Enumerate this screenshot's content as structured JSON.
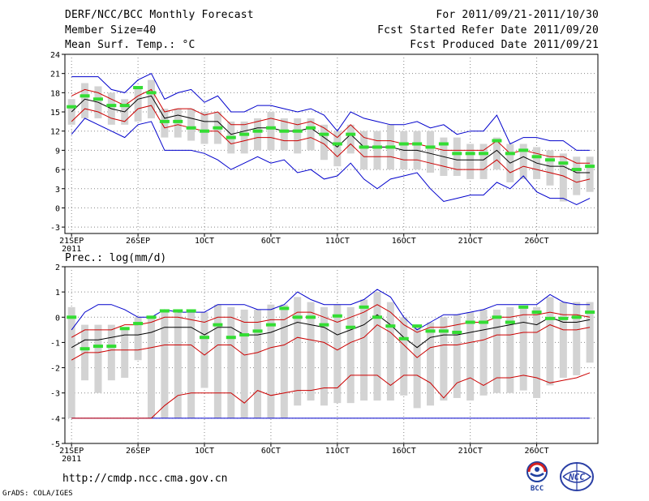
{
  "header": {
    "title": "DERF/NCC/BCC Monthly Forecast",
    "member_size": "Member Size=40",
    "variable": "Mean Surf. Temp.: °C",
    "period": "For 2011/09/21-2011/10/30",
    "fcst_started": "Fcst Started Refer Date 2011/09/20",
    "fcst_produced": "Fcst Produced Date 2011/09/21"
  },
  "footer": {
    "url": "http://cmdp.ncc.cma.gov.cn",
    "credit": "GrADS: COLA/IGES"
  },
  "logos": {
    "left": "BCC",
    "right": "NCC"
  },
  "colors": {
    "mean": "#000000",
    "spread": "#cc0000",
    "extreme": "#0000cc",
    "obs": "#33dd33",
    "box": "#d3d3d3"
  },
  "chart_data": [
    {
      "type": "line",
      "title": "Mean Surf. Temp.: °C",
      "ylim": [
        -4,
        24
      ],
      "yticks": [
        -3,
        0,
        3,
        6,
        9,
        12,
        15,
        18,
        21,
        24
      ],
      "xlim": [
        0,
        40
      ],
      "xticks": [
        {
          "day": 0,
          "label": "21SEP",
          "sub": "2011"
        },
        {
          "day": 5,
          "label": "26SEP"
        },
        {
          "day": 10,
          "label": "1OCT"
        },
        {
          "day": 15,
          "label": "6OCT"
        },
        {
          "day": 20,
          "label": "11OCT"
        },
        {
          "day": 25,
          "label": "16OCT"
        },
        {
          "day": 30,
          "label": "21OCT"
        },
        {
          "day": 35,
          "label": "26OCT"
        }
      ],
      "series": [
        {
          "name": "ensemble-max",
          "values": [
            20.5,
            20.5,
            20.5,
            18.5,
            18,
            20,
            21,
            17,
            18,
            18.5,
            16.5,
            17.5,
            15,
            15,
            16,
            16,
            15.5,
            15,
            15.5,
            14.5,
            12,
            15,
            14,
            13.5,
            13,
            13,
            13.5,
            12.5,
            13,
            11.5,
            12,
            12,
            14.5,
            10,
            11,
            11,
            10.5,
            10.5,
            9,
            9
          ]
        },
        {
          "name": "ensemble-upper",
          "values": [
            17.5,
            18.5,
            18,
            17,
            16,
            17.5,
            18.5,
            15,
            15.5,
            15.5,
            14.5,
            15,
            13,
            13,
            13.5,
            14,
            13.5,
            13,
            13.5,
            12.5,
            11,
            13,
            11,
            10.5,
            10.5,
            10,
            10,
            9.5,
            9,
            9,
            9,
            9,
            10.5,
            8.5,
            9,
            8.5,
            8,
            8,
            7,
            7
          ]
        },
        {
          "name": "ensemble-mean",
          "values": [
            15,
            17,
            16.5,
            15.5,
            15,
            17,
            17.5,
            14,
            14.5,
            14,
            13.5,
            13.5,
            11.5,
            12,
            12.5,
            12.5,
            12,
            12,
            12.5,
            11,
            9.5,
            11.5,
            9.5,
            9.5,
            9.5,
            9,
            9,
            8.5,
            8,
            7.5,
            7.5,
            7.5,
            9,
            7,
            8,
            7,
            6.5,
            6.5,
            5.5,
            5.5
          ]
        },
        {
          "name": "ensemble-lower",
          "values": [
            13.5,
            15.5,
            15,
            14,
            13.5,
            15.5,
            16,
            12.5,
            13,
            12.5,
            12,
            12,
            10,
            10.5,
            11,
            11,
            10.5,
            10.5,
            11,
            10,
            8,
            10,
            8,
            8,
            8,
            7.5,
            7.5,
            7,
            6.5,
            6,
            6,
            6,
            7.5,
            5.5,
            6.5,
            6,
            5.5,
            5,
            4,
            4.5
          ]
        },
        {
          "name": "ensemble-min",
          "values": [
            11.5,
            14,
            13,
            12,
            11,
            13,
            13.5,
            9,
            9,
            9,
            8.5,
            7.5,
            6,
            7,
            8,
            7,
            7.5,
            5.5,
            6,
            4.5,
            5,
            7,
            4.5,
            3,
            4.5,
            5,
            5.5,
            3,
            1,
            1.5,
            2,
            2,
            4,
            3,
            5,
            2.5,
            1.5,
            1.5,
            0.5,
            1.5
          ]
        },
        {
          "name": "observed",
          "values": [
            15.8,
            17.5,
            17,
            16,
            16,
            18.8,
            18,
            13.5,
            13.5,
            12.5,
            12,
            12.5,
            11,
            11.5,
            12,
            12.5,
            12,
            12,
            12.5,
            11.5,
            10,
            11.5,
            9.5,
            9.5,
            9.5,
            10,
            10,
            9.5,
            10,
            8.5,
            8.5,
            8.5,
            10.5,
            8.5,
            9,
            8,
            7.5,
            7,
            6,
            6.5
          ]
        }
      ],
      "boxes": [
        {
          "q1": 13,
          "q3": 17
        },
        {
          "q1": 14,
          "q3": 19.5
        },
        {
          "q1": 14,
          "q3": 19
        },
        {
          "q1": 13,
          "q3": 18
        },
        {
          "q1": 13,
          "q3": 17
        },
        {
          "q1": 13.5,
          "q3": 19
        },
        {
          "q1": 14,
          "q3": 20
        },
        {
          "q1": 11,
          "q3": 15.5
        },
        {
          "q1": 11,
          "q3": 15.5
        },
        {
          "q1": 10.5,
          "q3": 15.5
        },
        {
          "q1": 10,
          "q3": 15
        },
        {
          "q1": 10,
          "q3": 15
        },
        {
          "q1": 8.5,
          "q3": 13.5
        },
        {
          "q1": 8.5,
          "q3": 13.5
        },
        {
          "q1": 9,
          "q3": 14
        },
        {
          "q1": 9,
          "q3": 15
        },
        {
          "q1": 9,
          "q3": 14
        },
        {
          "q1": 8.5,
          "q3": 14
        },
        {
          "q1": 9,
          "q3": 14
        },
        {
          "q1": 7.5,
          "q3": 13
        },
        {
          "q1": 6.5,
          "q3": 12
        },
        {
          "q1": 8.5,
          "q3": 13
        },
        {
          "q1": 6,
          "q3": 12
        },
        {
          "q1": 6,
          "q3": 12
        },
        {
          "q1": 6,
          "q3": 13
        },
        {
          "q1": 6,
          "q3": 12
        },
        {
          "q1": 6,
          "q3": 12
        },
        {
          "q1": 5.5,
          "q3": 12
        },
        {
          "q1": 5,
          "q3": 11
        },
        {
          "q1": 5,
          "q3": 11
        },
        {
          "q1": 4.5,
          "q3": 10
        },
        {
          "q1": 4.5,
          "q3": 10
        },
        {
          "q1": 6,
          "q3": 11
        },
        {
          "q1": 4,
          "q3": 10
        },
        {
          "q1": 4.5,
          "q3": 10
        },
        {
          "q1": 4.5,
          "q3": 9.5
        },
        {
          "q1": 3.5,
          "q3": 9
        },
        {
          "q1": 1,
          "q3": 8.5
        },
        {
          "q1": 2,
          "q3": 8
        },
        {
          "q1": 2.5,
          "q3": 8
        }
      ]
    },
    {
      "type": "line",
      "title": "Prec.: log(mm/d)",
      "ylim": [
        -5,
        2
      ],
      "yticks": [
        -5,
        -4,
        -3,
        -2,
        -1,
        0,
        1,
        2
      ],
      "xlim": [
        0,
        40
      ],
      "xticks": [
        {
          "day": 0,
          "label": "21SEP",
          "sub": "2011"
        },
        {
          "day": 5,
          "label": "26SEP"
        },
        {
          "day": 10,
          "label": "1OCT"
        },
        {
          "day": 15,
          "label": "6OCT"
        },
        {
          "day": 20,
          "label": "11OCT"
        },
        {
          "day": 25,
          "label": "16OCT"
        },
        {
          "day": 30,
          "label": "21OCT"
        },
        {
          "day": 35,
          "label": "26OCT"
        }
      ],
      "series": [
        {
          "name": "ensemble-max",
          "values": [
            -0.5,
            0.2,
            0.5,
            0.5,
            0.3,
            0,
            0,
            0.3,
            0.2,
            0.2,
            0.2,
            0.5,
            0.5,
            0.5,
            0.3,
            0.3,
            0.5,
            1,
            0.7,
            0.5,
            0.5,
            0.5,
            0.7,
            1.1,
            0.8,
            0,
            -0.5,
            -0.2,
            0.1,
            0.1,
            0.2,
            0.3,
            0.5,
            0.5,
            0.5,
            0.5,
            0.9,
            0.6,
            0.5,
            0.5
          ]
        },
        {
          "name": "ensemble-upper",
          "values": [
            -0.8,
            -0.5,
            -0.5,
            -0.5,
            -0.3,
            -0.3,
            -0.2,
            0,
            0,
            -0.1,
            -0.2,
            0,
            0,
            -0.2,
            -0.2,
            -0.1,
            -0.1,
            0.2,
            0.2,
            0,
            -0.2,
            0,
            0.2,
            0.5,
            0.2,
            -0.3,
            -0.6,
            -0.4,
            -0.4,
            -0.3,
            -0.2,
            -0.2,
            0,
            0,
            0.1,
            0.1,
            0.2,
            0.1,
            0.1,
            0
          ]
        },
        {
          "name": "ensemble-mean",
          "values": [
            -1.2,
            -0.9,
            -0.9,
            -0.8,
            -0.7,
            -0.7,
            -0.6,
            -0.4,
            -0.4,
            -0.4,
            -0.7,
            -0.4,
            -0.4,
            -0.7,
            -0.7,
            -0.6,
            -0.4,
            -0.2,
            -0.3,
            -0.4,
            -0.7,
            -0.5,
            -0.3,
            0.1,
            -0.3,
            -0.8,
            -1.2,
            -0.8,
            -0.7,
            -0.7,
            -0.6,
            -0.5,
            -0.4,
            -0.3,
            -0.2,
            -0.3,
            0,
            -0.2,
            -0.2,
            -0.1
          ]
        },
        {
          "name": "ensemble-lower",
          "values": [
            -1.7,
            -1.4,
            -1.4,
            -1.3,
            -1.3,
            -1.3,
            -1.2,
            -1.1,
            -1.1,
            -1.1,
            -1.5,
            -1.1,
            -1.1,
            -1.5,
            -1.4,
            -1.2,
            -1.1,
            -0.8,
            -0.9,
            -1,
            -1.3,
            -1,
            -0.8,
            -0.3,
            -0.6,
            -1.1,
            -1.6,
            -1.2,
            -1.1,
            -1.1,
            -1,
            -0.9,
            -0.7,
            -0.7,
            -0.6,
            -0.6,
            -0.3,
            -0.5,
            -0.5,
            -0.4
          ]
        },
        {
          "name": "ensemble-min",
          "values": [
            -4,
            -4,
            -4,
            -4,
            -4,
            -4,
            -4,
            -4,
            -4,
            -4,
            -4,
            -4,
            -4,
            -4,
            -4,
            -4,
            -4,
            -4,
            -4,
            -4,
            -4,
            -4,
            -4,
            -4,
            -4,
            -4,
            -4,
            -4,
            -4,
            -4,
            -4,
            -4,
            -4,
            -4,
            -4,
            -4,
            -4,
            -4,
            -4,
            -4
          ]
        },
        {
          "name": "ensemble-low-band",
          "values": [
            -4,
            -4,
            -4,
            -4,
            -4,
            -4,
            -4,
            -3.5,
            -3.1,
            -3,
            -3,
            -3,
            -3,
            -3.4,
            -2.9,
            -3.1,
            -3,
            -2.9,
            -2.9,
            -2.8,
            -2.8,
            -2.3,
            -2.3,
            -2.3,
            -2.7,
            -2.3,
            -2.3,
            -2.6,
            -3.2,
            -2.6,
            -2.4,
            -2.7,
            -2.4,
            -2.4,
            -2.3,
            -2.4,
            -2.6,
            -2.5,
            -2.4,
            -2.2
          ]
        },
        {
          "name": "observed",
          "values": [
            0,
            -1.25,
            -1.15,
            -1.15,
            -0.45,
            -0.25,
            0,
            0.25,
            0.25,
            0.25,
            -0.8,
            -0.3,
            -0.8,
            -0.7,
            -0.55,
            -0.3,
            0.35,
            0,
            0,
            -0.3,
            0.05,
            -0.4,
            0.4,
            0,
            -0.35,
            -0.85,
            -0.35,
            -0.55,
            -0.55,
            -0.6,
            -0.2,
            -0.2,
            0,
            -0.2,
            0.4,
            0.2,
            -0.05,
            -0.05,
            0,
            0.2
          ]
        }
      ],
      "boxes": [
        {
          "q1": -4,
          "q3": 0.4
        },
        {
          "q1": -2.5,
          "q3": -0.3
        },
        {
          "q1": -3,
          "q3": -0.3
        },
        {
          "q1": -2.5,
          "q3": -0.3
        },
        {
          "q1": -2.4,
          "q3": -0.4
        },
        {
          "q1": -1.7,
          "q3": 0
        },
        {
          "q1": -4,
          "q3": 0
        },
        {
          "q1": -4,
          "q3": 0.3
        },
        {
          "q1": -4,
          "q3": 0.3
        },
        {
          "q1": -4,
          "q3": 0.2
        },
        {
          "q1": -2.8,
          "q3": 0.2
        },
        {
          "q1": -4,
          "q3": 0.5
        },
        {
          "q1": -4,
          "q3": 0.4
        },
        {
          "q1": -4,
          "q3": 0.3
        },
        {
          "q1": -4,
          "q3": 0.3
        },
        {
          "q1": -4,
          "q3": 0.5
        },
        {
          "q1": -4,
          "q3": 0.5
        },
        {
          "q1": -3.5,
          "q3": 0.8
        },
        {
          "q1": -3.3,
          "q3": 0.6
        },
        {
          "q1": -3.5,
          "q3": 0.4
        },
        {
          "q1": -3.4,
          "q3": 0.5
        },
        {
          "q1": -3.4,
          "q3": 0.4
        },
        {
          "q1": -3.3,
          "q3": 0.7
        },
        {
          "q1": -3.3,
          "q3": 1
        },
        {
          "q1": -3.3,
          "q3": 0.6
        },
        {
          "q1": -3.1,
          "q3": 0
        },
        {
          "q1": -3.6,
          "q3": -0.4
        },
        {
          "q1": -3.5,
          "q3": -0.2
        },
        {
          "q1": -3.3,
          "q3": 0
        },
        {
          "q1": -3.2,
          "q3": 0.1
        },
        {
          "q1": -3.3,
          "q3": 0.2
        },
        {
          "q1": -3.1,
          "q3": 0.3
        },
        {
          "q1": -3,
          "q3": 0.3
        },
        {
          "q1": -3,
          "q3": 0.4
        },
        {
          "q1": -2.9,
          "q3": 0.4
        },
        {
          "q1": -3.2,
          "q3": 0.4
        },
        {
          "q1": -2.7,
          "q3": 0.8
        },
        {
          "q1": -2.4,
          "q3": 0.6
        },
        {
          "q1": -2.3,
          "q3": 0.6
        },
        {
          "q1": -1.8,
          "q3": 0.6
        }
      ]
    }
  ]
}
